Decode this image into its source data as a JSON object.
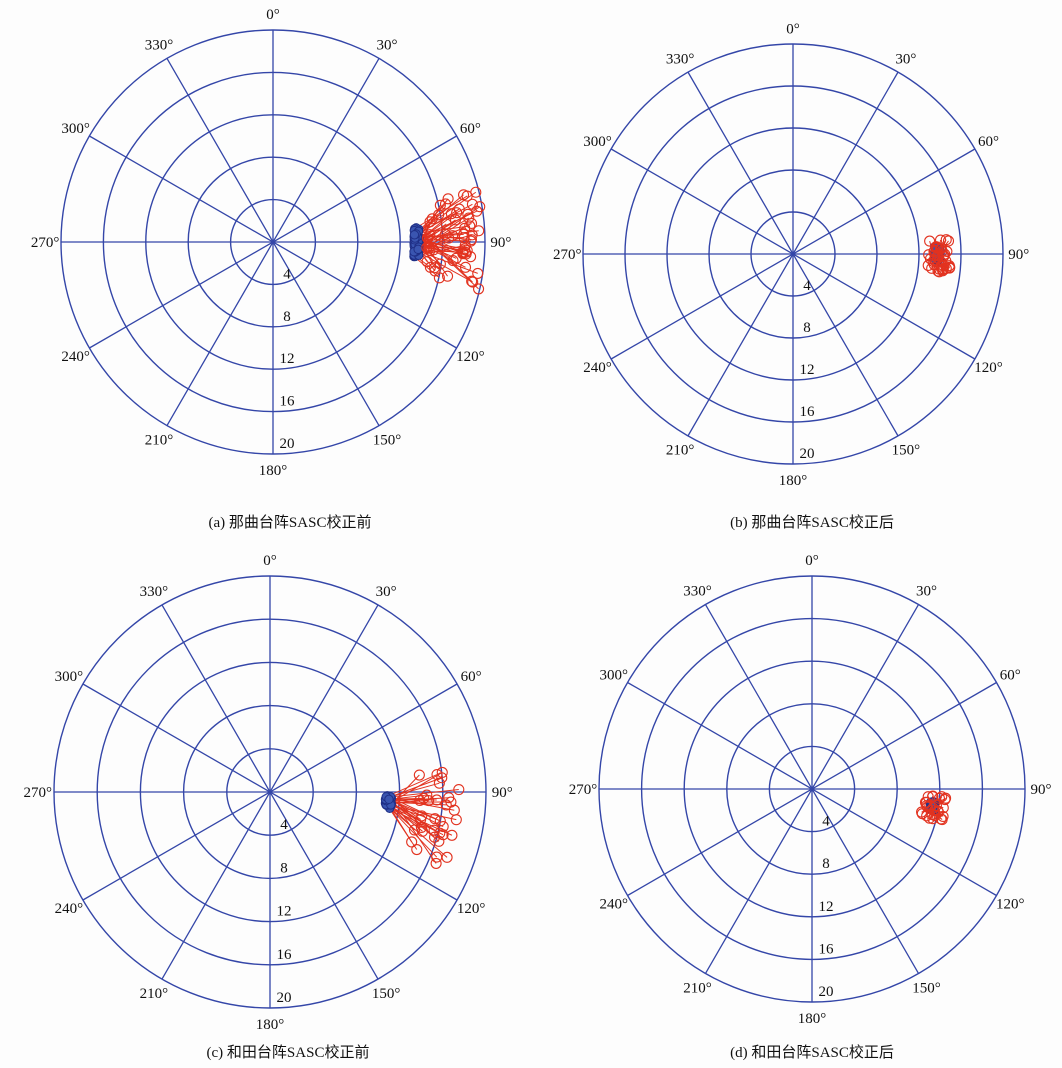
{
  "chart_data": [
    {
      "type": "scatter",
      "projection": "polar",
      "theta_zero": "top",
      "theta_direction": "clockwise",
      "rlim": [
        0,
        20
      ],
      "angle_ticks": [
        "0°",
        "30°",
        "60°",
        "90°",
        "120°",
        "150°",
        "180°",
        "210°",
        "240°",
        "270°",
        "300°",
        "330°"
      ],
      "radius_ticks": [
        "4",
        "8",
        "12",
        "16",
        "20"
      ],
      "caption": "(a) 那曲台阵SASC校正前",
      "series_start": {
        "r_range": [
          13.3,
          13.8
        ],
        "theta_range": [
          84,
          96
        ]
      },
      "series_end": {
        "r_range": [
          14.5,
          20.0
        ],
        "theta_range": [
          76,
          103
        ]
      },
      "point_count": 60,
      "grid": true,
      "legend": "none"
    },
    {
      "type": "scatter",
      "projection": "polar",
      "theta_zero": "top",
      "theta_direction": "clockwise",
      "rlim": [
        0,
        20
      ],
      "angle_ticks": [
        "0°",
        "30°",
        "60°",
        "90°",
        "120°",
        "150°",
        "180°",
        "210°",
        "240°",
        "270°",
        "300°",
        "330°"
      ],
      "radius_ticks": [
        "4",
        "8",
        "12",
        "16",
        "20"
      ],
      "caption": "(b) 那曲台阵SASC校正后",
      "series_start": {
        "r_range": [
          13.5,
          14.0
        ],
        "theta_range": [
          87,
          93
        ]
      },
      "series_end": {
        "r_range": [
          12.9,
          15.0
        ],
        "theta_range": [
          84,
          97
        ]
      },
      "point_count": 40,
      "grid": true,
      "legend": "none"
    },
    {
      "type": "scatter",
      "projection": "polar",
      "theta_zero": "top",
      "theta_direction": "clockwise",
      "rlim": [
        0,
        20
      ],
      "angle_ticks": [
        "0°",
        "30°",
        "60°",
        "90°",
        "120°",
        "150°",
        "180°",
        "210°",
        "240°",
        "270°",
        "300°",
        "330°"
      ],
      "radius_ticks": [
        "4",
        "8",
        "12",
        "16",
        "20"
      ],
      "caption": "(c) 和田台阵SASC校正前",
      "series_start": {
        "r_range": [
          10.7,
          11.3
        ],
        "theta_range": [
          91,
          98
        ]
      },
      "series_end": {
        "r_range": [
          13.5,
          17.5
        ],
        "theta_range": [
          82,
          114
        ]
      },
      "point_count": 35,
      "grid": true,
      "legend": "none"
    },
    {
      "type": "scatter",
      "projection": "polar",
      "theta_zero": "top",
      "theta_direction": "clockwise",
      "rlim": [
        0,
        20
      ],
      "angle_ticks": [
        "0°",
        "30°",
        "60°",
        "90°",
        "120°",
        "150°",
        "180°",
        "210°",
        "240°",
        "270°",
        "300°",
        "330°"
      ],
      "radius_ticks": [
        "4",
        "8",
        "12",
        "16",
        "20"
      ],
      "caption": "(d) 和田台阵SASC校正后",
      "series_start": {
        "r_range": [
          11.2,
          11.6
        ],
        "theta_range": [
          96,
          100
        ]
      },
      "series_end": {
        "r_range": [
          10.5,
          12.6
        ],
        "theta_range": [
          93,
          104
        ]
      },
      "point_count": 30,
      "grid": true,
      "legend": "none"
    }
  ]
}
